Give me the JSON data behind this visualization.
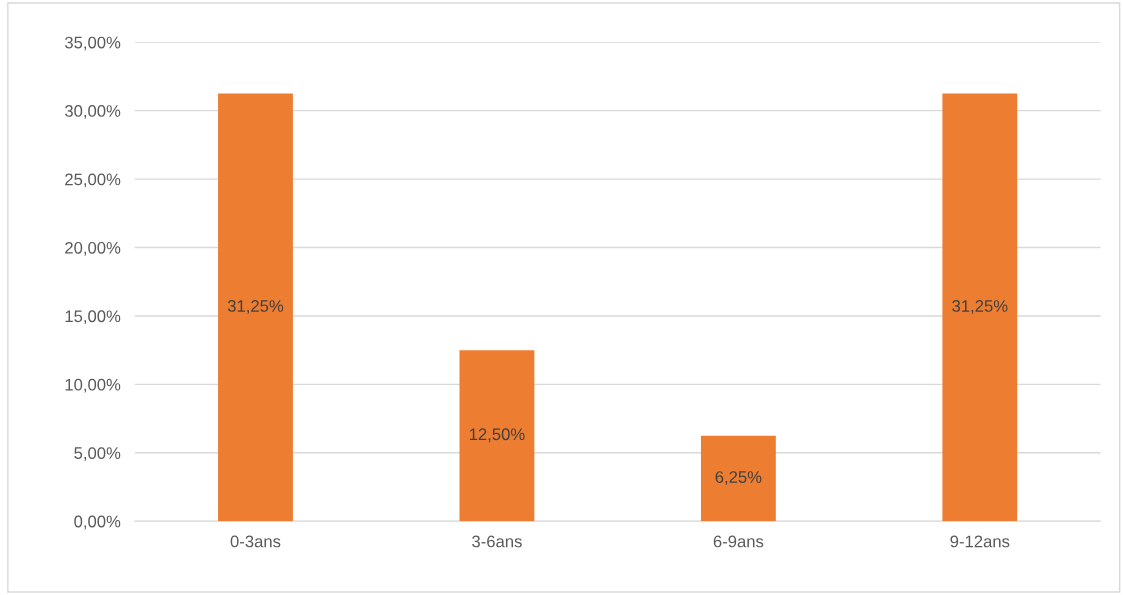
{
  "chart_data": {
    "type": "bar",
    "categories": [
      "0-3ans",
      "3-6ans",
      "6-9ans",
      "9-12ans"
    ],
    "values": [
      31.25,
      12.5,
      6.25,
      31.25
    ],
    "value_labels": [
      "31,25%",
      "12,50%",
      "6,25%",
      "31,25%"
    ],
    "color": "#ed7d31",
    "ylim": [
      0,
      35
    ],
    "yticks": [
      {
        "value": 0,
        "label": "0,00%"
      },
      {
        "value": 5,
        "label": "5,00%"
      },
      {
        "value": 10,
        "label": "10,00%"
      },
      {
        "value": 15,
        "label": "15,00%"
      },
      {
        "value": 20,
        "label": "20,00%"
      },
      {
        "value": 25,
        "label": "25,00%"
      },
      {
        "value": 30,
        "label": "30,00%"
      },
      {
        "value": 35,
        "label": "35,00%"
      }
    ],
    "grid": "y",
    "legend": false
  }
}
